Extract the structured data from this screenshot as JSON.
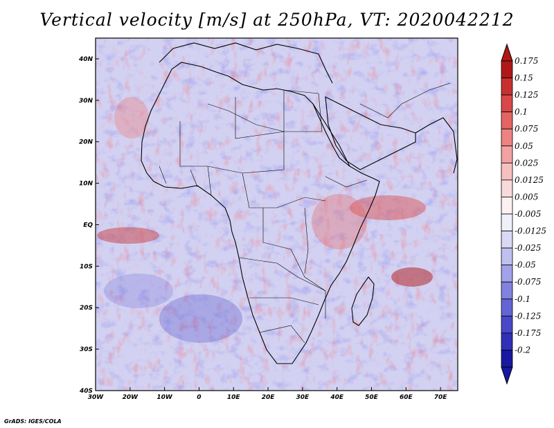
{
  "title": "Vertical velocity [m/s] at 250hPa, VT: 2020042212",
  "credit": "GrADS: IGES/COLA",
  "map": {
    "lon_range": [
      -30,
      75
    ],
    "lat_range": [
      -40,
      45
    ],
    "x_ticks": [
      "30W",
      "20W",
      "10W",
      "0",
      "10E",
      "20E",
      "30E",
      "40E",
      "50E",
      "60E",
      "70E"
    ],
    "y_ticks": [
      "40S",
      "30S",
      "20S",
      "10S",
      "EQ",
      "10N",
      "20N",
      "30N",
      "40N"
    ],
    "x_tick_values": [
      -30,
      -20,
      -10,
      0,
      10,
      20,
      30,
      40,
      50,
      60,
      70
    ],
    "y_tick_values": [
      -40,
      -30,
      -20,
      -10,
      0,
      10,
      20,
      30,
      40
    ],
    "field_colors": {
      "positive": "#e06060",
      "negative": "#6060e0",
      "neutral": "#f2f2f8"
    }
  },
  "colorbar": {
    "labels": [
      "0.175",
      "0.15",
      "0.125",
      "0.1",
      "0.075",
      "0.05",
      "0.025",
      "0.0125",
      "0.005",
      "-0.005",
      "-0.0125",
      "-0.025",
      "-0.05",
      "-0.075",
      "-0.1",
      "-0.125",
      "-0.175",
      "-0.2"
    ],
    "colors": [
      "#b01818",
      "#c83030",
      "#d84848",
      "#e46464",
      "#ec8282",
      "#f2a2a2",
      "#f6c0c0",
      "#f9d9d9",
      "#fdf0f0",
      "#f0f0fb",
      "#d9d9f6",
      "#c0c0f0",
      "#a2a2e8",
      "#8282de",
      "#6464d4",
      "#4848c8",
      "#3030b8",
      "#1818a0"
    ]
  }
}
